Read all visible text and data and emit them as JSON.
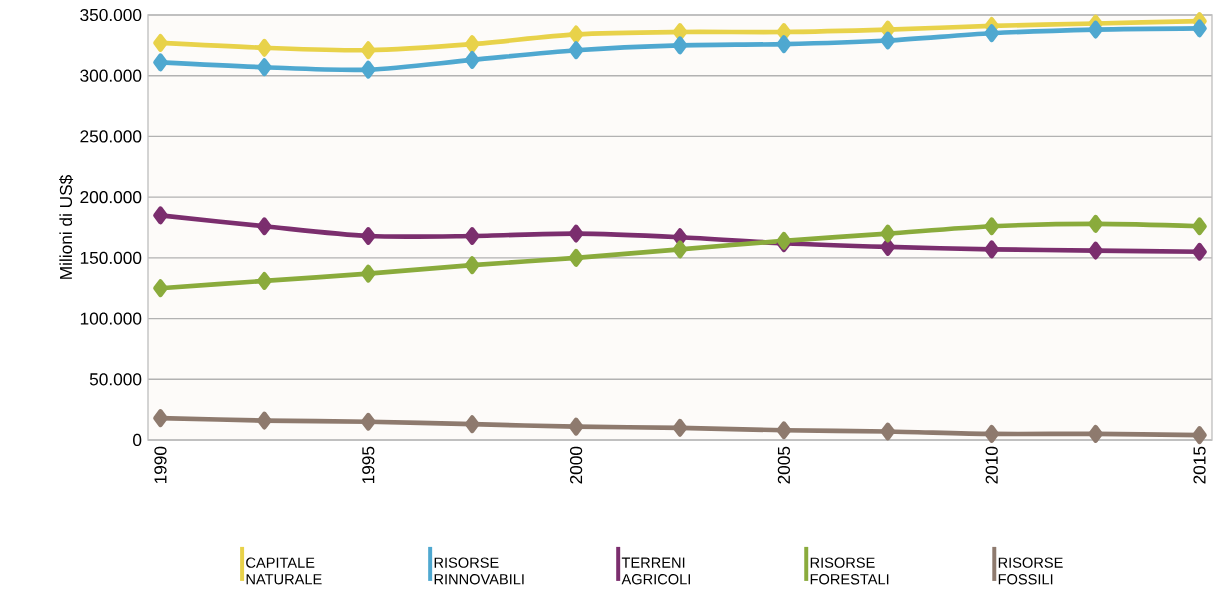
{
  "chart_data": {
    "type": "line",
    "ylabel": "Milioni di US$",
    "x": [
      1990,
      1992.5,
      1995,
      1997.5,
      2000,
      2002.5,
      2005,
      2007.5,
      2010,
      2012.5,
      2015
    ],
    "xlim": [
      1989.7,
      2015.3
    ],
    "xticks": [
      1990,
      1995,
      2000,
      2005,
      2010,
      2015
    ],
    "ylim": [
      0,
      350000
    ],
    "yticks": [
      {
        "value": 0,
        "label": "0"
      },
      {
        "value": 50000,
        "label": "50.000"
      },
      {
        "value": 100000,
        "label": "100.000"
      },
      {
        "value": 150000,
        "label": "150.000"
      },
      {
        "value": 200000,
        "label": "200.000"
      },
      {
        "value": 250000,
        "label": "250.000"
      },
      {
        "value": 300000,
        "label": "300.000"
      },
      {
        "value": 350000,
        "label": "350.000"
      }
    ],
    "grid": "y",
    "legend": "bottom",
    "marker": "diamond",
    "line_style": "solid",
    "series": [
      {
        "name": "CAPITALE NATURALE",
        "color": "#e8d24a",
        "values": [
          327000,
          323000,
          321000,
          326000,
          334000,
          336000,
          336000,
          338000,
          341000,
          343000,
          345000
        ]
      },
      {
        "name": "RISORSE RINNOVABILI",
        "color": "#4fa8d0",
        "values": [
          311000,
          307000,
          305000,
          313000,
          321000,
          325000,
          326000,
          329000,
          335000,
          338000,
          339000
        ]
      },
      {
        "name": "TERRENI AGRICOLI",
        "color": "#7b2e6e",
        "values": [
          185000,
          176000,
          168000,
          168000,
          170000,
          167000,
          162000,
          159000,
          157000,
          156000,
          155000
        ]
      },
      {
        "name": "RISORSE FORESTALI",
        "color": "#8aab3c",
        "values": [
          125000,
          131000,
          137000,
          144000,
          150000,
          157000,
          164000,
          170000,
          176000,
          178000,
          176000
        ]
      },
      {
        "name": "RISORSE FOSSILI",
        "color": "#8e7a6e",
        "values": [
          18000,
          16000,
          15000,
          13000,
          11000,
          10000,
          8000,
          7000,
          5000,
          5000,
          4000
        ]
      }
    ]
  }
}
